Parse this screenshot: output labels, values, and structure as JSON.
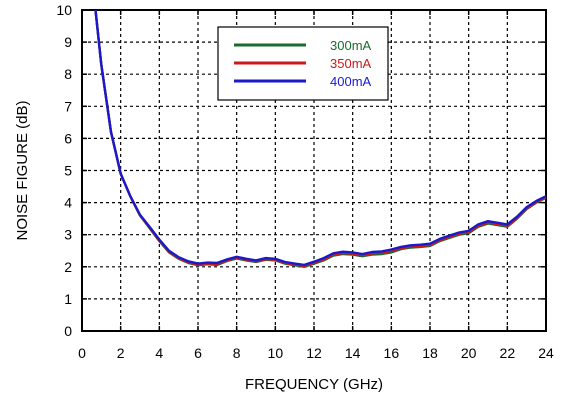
{
  "chart_data": {
    "type": "line",
    "title": "",
    "xlabel": "FREQUENCY (GHz)",
    "ylabel": "NOISE FIGURE (dB)",
    "xlim": [
      0,
      24
    ],
    "ylim": [
      0,
      10
    ],
    "xticks": [
      0,
      2,
      4,
      6,
      8,
      10,
      12,
      14,
      16,
      18,
      20,
      22,
      24
    ],
    "yticks": [
      0,
      1,
      2,
      3,
      4,
      5,
      6,
      7,
      8,
      9,
      10
    ],
    "grid": true,
    "legend_position": "top-center",
    "series": [
      {
        "name": "300mA",
        "color": "#1a6b2e",
        "points": [
          [
            0.7,
            10.0
          ],
          [
            1.0,
            8.3
          ],
          [
            1.5,
            6.2
          ],
          [
            2.0,
            4.9
          ],
          [
            2.5,
            4.2
          ],
          [
            3.0,
            3.6
          ],
          [
            3.5,
            3.2
          ],
          [
            4.0,
            2.8
          ],
          [
            4.5,
            2.45
          ],
          [
            5.0,
            2.25
          ],
          [
            5.5,
            2.12
          ],
          [
            6.0,
            2.05
          ],
          [
            6.5,
            2.08
          ],
          [
            7.0,
            2.06
          ],
          [
            7.5,
            2.18
          ],
          [
            8.0,
            2.26
          ],
          [
            8.5,
            2.2
          ],
          [
            9.0,
            2.15
          ],
          [
            9.5,
            2.22
          ],
          [
            10.0,
            2.2
          ],
          [
            10.5,
            2.1
          ],
          [
            11.0,
            2.05
          ],
          [
            11.5,
            2.0
          ],
          [
            12.0,
            2.1
          ],
          [
            12.5,
            2.2
          ],
          [
            13.0,
            2.35
          ],
          [
            13.5,
            2.4
          ],
          [
            14.0,
            2.38
          ],
          [
            14.5,
            2.33
          ],
          [
            15.0,
            2.38
          ],
          [
            15.5,
            2.4
          ],
          [
            16.0,
            2.45
          ],
          [
            16.5,
            2.55
          ],
          [
            17.0,
            2.6
          ],
          [
            17.5,
            2.62
          ],
          [
            18.0,
            2.65
          ],
          [
            18.5,
            2.8
          ],
          [
            19.0,
            2.9
          ],
          [
            19.5,
            3.0
          ],
          [
            20.0,
            3.05
          ],
          [
            20.5,
            3.25
          ],
          [
            21.0,
            3.35
          ],
          [
            21.5,
            3.3
          ],
          [
            22.0,
            3.25
          ],
          [
            22.5,
            3.5
          ],
          [
            23.0,
            3.8
          ],
          [
            23.5,
            4.0
          ],
          [
            24.0,
            4.15
          ]
        ]
      },
      {
        "name": "350mA",
        "color": "#cc1a1a",
        "points": [
          [
            0.7,
            10.0
          ],
          [
            1.0,
            8.3
          ],
          [
            1.5,
            6.2
          ],
          [
            2.0,
            4.9
          ],
          [
            2.5,
            4.2
          ],
          [
            3.0,
            3.6
          ],
          [
            3.5,
            3.22
          ],
          [
            4.0,
            2.82
          ],
          [
            4.5,
            2.47
          ],
          [
            5.0,
            2.27
          ],
          [
            5.5,
            2.14
          ],
          [
            6.0,
            2.07
          ],
          [
            6.5,
            2.1
          ],
          [
            7.0,
            2.09
          ],
          [
            7.5,
            2.2
          ],
          [
            8.0,
            2.28
          ],
          [
            8.5,
            2.22
          ],
          [
            9.0,
            2.17
          ],
          [
            9.5,
            2.24
          ],
          [
            10.0,
            2.22
          ],
          [
            10.5,
            2.12
          ],
          [
            11.0,
            2.07
          ],
          [
            11.5,
            2.03
          ],
          [
            12.0,
            2.12
          ],
          [
            12.5,
            2.23
          ],
          [
            13.0,
            2.38
          ],
          [
            13.5,
            2.43
          ],
          [
            14.0,
            2.41
          ],
          [
            14.5,
            2.36
          ],
          [
            15.0,
            2.42
          ],
          [
            15.5,
            2.44
          ],
          [
            16.0,
            2.5
          ],
          [
            16.5,
            2.58
          ],
          [
            17.0,
            2.63
          ],
          [
            17.5,
            2.65
          ],
          [
            18.0,
            2.68
          ],
          [
            18.5,
            2.83
          ],
          [
            19.0,
            2.93
          ],
          [
            19.5,
            3.03
          ],
          [
            20.0,
            3.08
          ],
          [
            20.5,
            3.28
          ],
          [
            21.0,
            3.38
          ],
          [
            21.5,
            3.33
          ],
          [
            22.0,
            3.28
          ],
          [
            22.5,
            3.52
          ],
          [
            23.0,
            3.82
          ],
          [
            23.5,
            4.02
          ],
          [
            24.0,
            4.17
          ]
        ]
      },
      {
        "name": "400mA",
        "color": "#1a1acc",
        "points": [
          [
            0.7,
            10.0
          ],
          [
            1.0,
            8.3
          ],
          [
            1.5,
            6.2
          ],
          [
            2.0,
            4.9
          ],
          [
            2.5,
            4.2
          ],
          [
            3.0,
            3.62
          ],
          [
            3.5,
            3.24
          ],
          [
            4.0,
            2.85
          ],
          [
            4.5,
            2.5
          ],
          [
            5.0,
            2.3
          ],
          [
            5.5,
            2.17
          ],
          [
            6.0,
            2.1
          ],
          [
            6.5,
            2.13
          ],
          [
            7.0,
            2.12
          ],
          [
            7.5,
            2.23
          ],
          [
            8.0,
            2.31
          ],
          [
            8.5,
            2.25
          ],
          [
            9.0,
            2.2
          ],
          [
            9.5,
            2.27
          ],
          [
            10.0,
            2.25
          ],
          [
            10.5,
            2.15
          ],
          [
            11.0,
            2.1
          ],
          [
            11.5,
            2.06
          ],
          [
            12.0,
            2.16
          ],
          [
            12.5,
            2.27
          ],
          [
            13.0,
            2.42
          ],
          [
            13.5,
            2.47
          ],
          [
            14.0,
            2.45
          ],
          [
            14.5,
            2.4
          ],
          [
            15.0,
            2.46
          ],
          [
            15.5,
            2.48
          ],
          [
            16.0,
            2.54
          ],
          [
            16.5,
            2.62
          ],
          [
            17.0,
            2.67
          ],
          [
            17.5,
            2.69
          ],
          [
            18.0,
            2.72
          ],
          [
            18.5,
            2.87
          ],
          [
            19.0,
            2.97
          ],
          [
            19.5,
            3.07
          ],
          [
            20.0,
            3.12
          ],
          [
            20.5,
            3.32
          ],
          [
            21.0,
            3.42
          ],
          [
            21.5,
            3.37
          ],
          [
            22.0,
            3.32
          ],
          [
            22.5,
            3.56
          ],
          [
            23.0,
            3.86
          ],
          [
            23.5,
            4.05
          ],
          [
            24.0,
            4.2
          ]
        ]
      }
    ]
  }
}
